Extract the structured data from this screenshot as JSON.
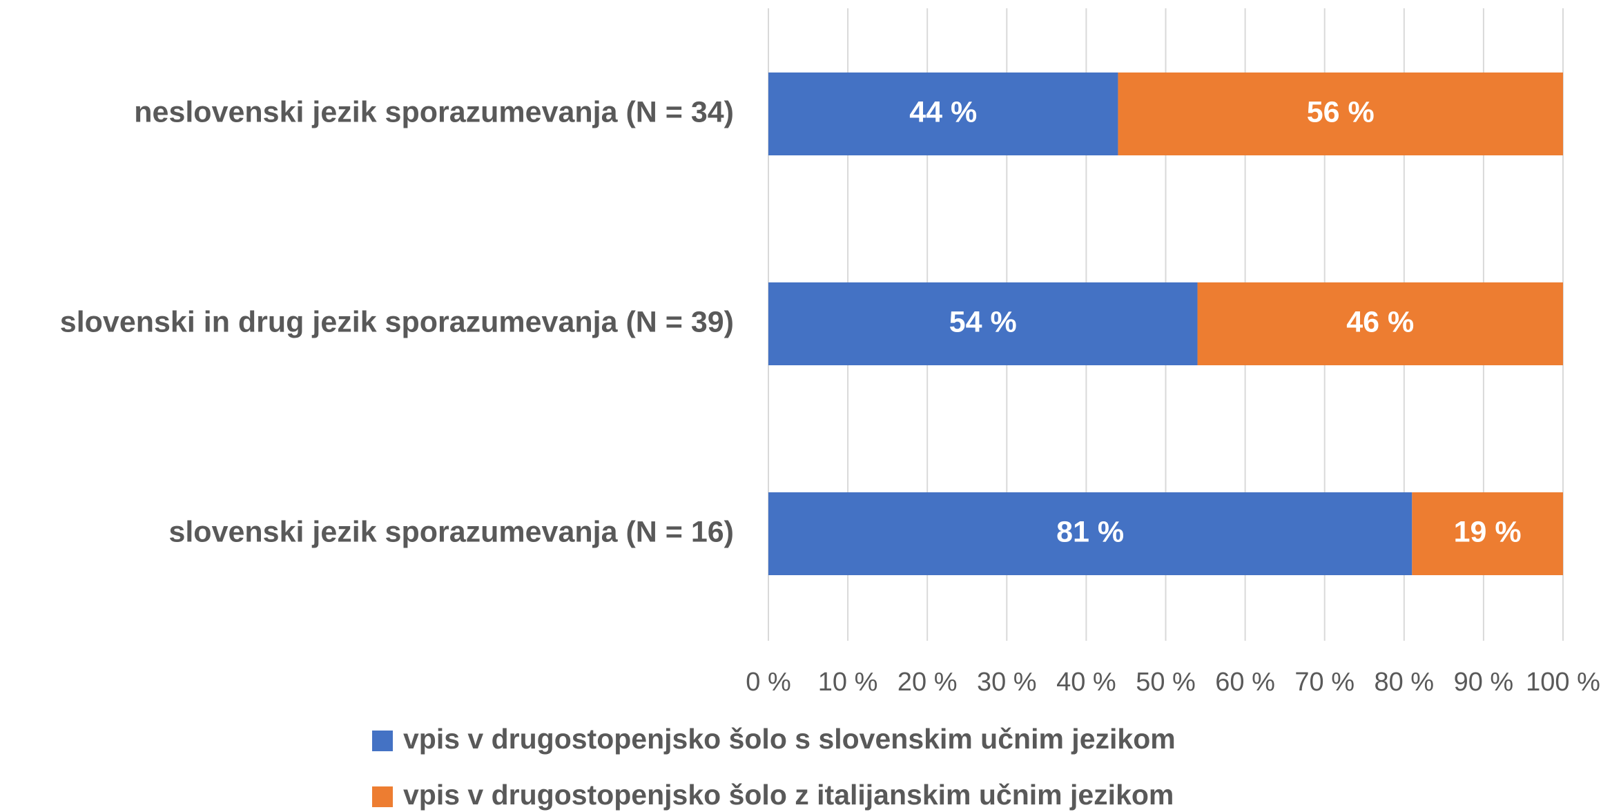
{
  "chart_data": {
    "type": "stacked_bar_horizontal",
    "categories": [
      "neslovenski jezik sporazumevanja (N = 34)",
      "slovenski in drug jezik sporazumevanja (N = 39)",
      "slovenski jezik sporazumevanja (N = 16)"
    ],
    "series": [
      {
        "name": "vpis v drugostopenjsko šolo s slovenskim učnim jezikom",
        "color": "#4472c4",
        "values": [
          44,
          54,
          81
        ],
        "value_labels": [
          "44 %",
          "54 %",
          "81 %"
        ]
      },
      {
        "name": "vpis v drugostopenjsko šolo z italijanskim učnim jezikom",
        "color": "#ed7d31",
        "values": [
          56,
          46,
          19
        ],
        "value_labels": [
          "56 %",
          "46 %",
          "19 %"
        ]
      }
    ],
    "xlim": [
      0,
      100
    ],
    "xticks": [
      {
        "value": 0,
        "label": "0 %"
      },
      {
        "value": 10,
        "label": "10 %"
      },
      {
        "value": 20,
        "label": "20 %"
      },
      {
        "value": 30,
        "label": "30 %"
      },
      {
        "value": 40,
        "label": "40 %"
      },
      {
        "value": 50,
        "label": "50 %"
      },
      {
        "value": 60,
        "label": "60 %"
      },
      {
        "value": 70,
        "label": "70 %"
      },
      {
        "value": 80,
        "label": "80 %"
      },
      {
        "value": 90,
        "label": "90 %"
      },
      {
        "value": 100,
        "label": "100 %"
      }
    ],
    "grid": true,
    "legend": "bottom"
  }
}
